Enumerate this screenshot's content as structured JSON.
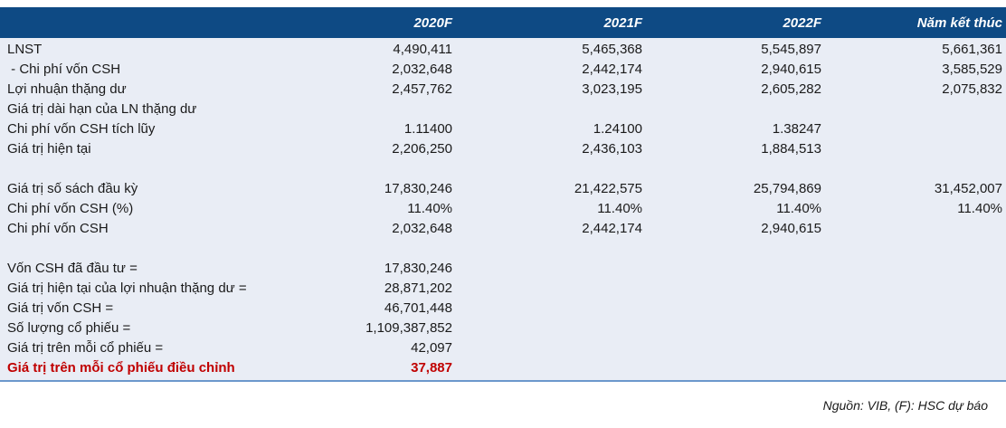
{
  "colors": {
    "header_bg": "#0e4a84",
    "header_text": "#ffffff",
    "row_bg": "#e9edf5",
    "body_text": "#1a1a1a",
    "accent_red": "#c00000",
    "border_blue": "#6c98cc"
  },
  "table": {
    "columns": [
      "",
      "2020F",
      "2021F",
      "2022F",
      "Năm kết thúc"
    ],
    "rows": [
      {
        "label": "LNST",
        "values": [
          "4,490,411",
          "5,465,368",
          "5,545,897",
          "5,661,361"
        ]
      },
      {
        "label": " - Chi phí vốn CSH",
        "values": [
          "2,032,648",
          "2,442,174",
          "2,940,615",
          "3,585,529"
        ]
      },
      {
        "label": "Lợi nhuận thặng dư",
        "values": [
          "2,457,762",
          "3,023,195",
          "2,605,282",
          "2,075,832"
        ]
      },
      {
        "label": "Giá trị dài hạn của LN thặng dư",
        "values": [
          "",
          "",
          "",
          ""
        ]
      },
      {
        "label": "Chi phí vốn CSH tích lũy",
        "values": [
          "1.11400",
          "1.24100",
          "1.38247",
          ""
        ]
      },
      {
        "label": "Giá trị hiện tại",
        "values": [
          "2,206,250",
          "2,436,103",
          "1,884,513",
          ""
        ]
      },
      {
        "type": "spacer",
        "label": "",
        "values": [
          "",
          "",
          "",
          ""
        ]
      },
      {
        "label": "Giá trị số sách đầu kỳ",
        "values": [
          "17,830,246",
          "21,422,575",
          "25,794,869",
          "31,452,007"
        ]
      },
      {
        "label": "Chi phí vốn CSH (%)",
        "values": [
          "11.40%",
          "11.40%",
          "11.40%",
          "11.40%"
        ]
      },
      {
        "label": "Chi phí vốn CSH",
        "values": [
          "2,032,648",
          "2,442,174",
          "2,940,615",
          ""
        ]
      },
      {
        "type": "spacer",
        "label": "",
        "values": [
          "",
          "",
          "",
          ""
        ]
      },
      {
        "label": "Vốn CSH đã đầu tư =",
        "values": [
          "17,830,246",
          "",
          "",
          ""
        ]
      },
      {
        "label": "Giá trị hiện tại của lợi nhuận thặng dư =",
        "values": [
          "28,871,202",
          "",
          "",
          ""
        ]
      },
      {
        "label": "Giá trị vốn CSH =",
        "values": [
          "46,701,448",
          "",
          "",
          ""
        ]
      },
      {
        "label": "Số lượng cổ phiếu =",
        "values": [
          "1,109,387,852",
          "",
          "",
          ""
        ]
      },
      {
        "label": "Giá trị trên mỗi cổ phiếu =",
        "values": [
          "42,097",
          "",
          "",
          ""
        ]
      },
      {
        "label": "Giá trị trên mỗi cổ phiếu điều chỉnh",
        "values": [
          "37,887",
          "",
          "",
          ""
        ],
        "style": "red"
      }
    ]
  },
  "footer": {
    "source_note": "Nguồn: VIB, (F): HSC dự báo"
  }
}
